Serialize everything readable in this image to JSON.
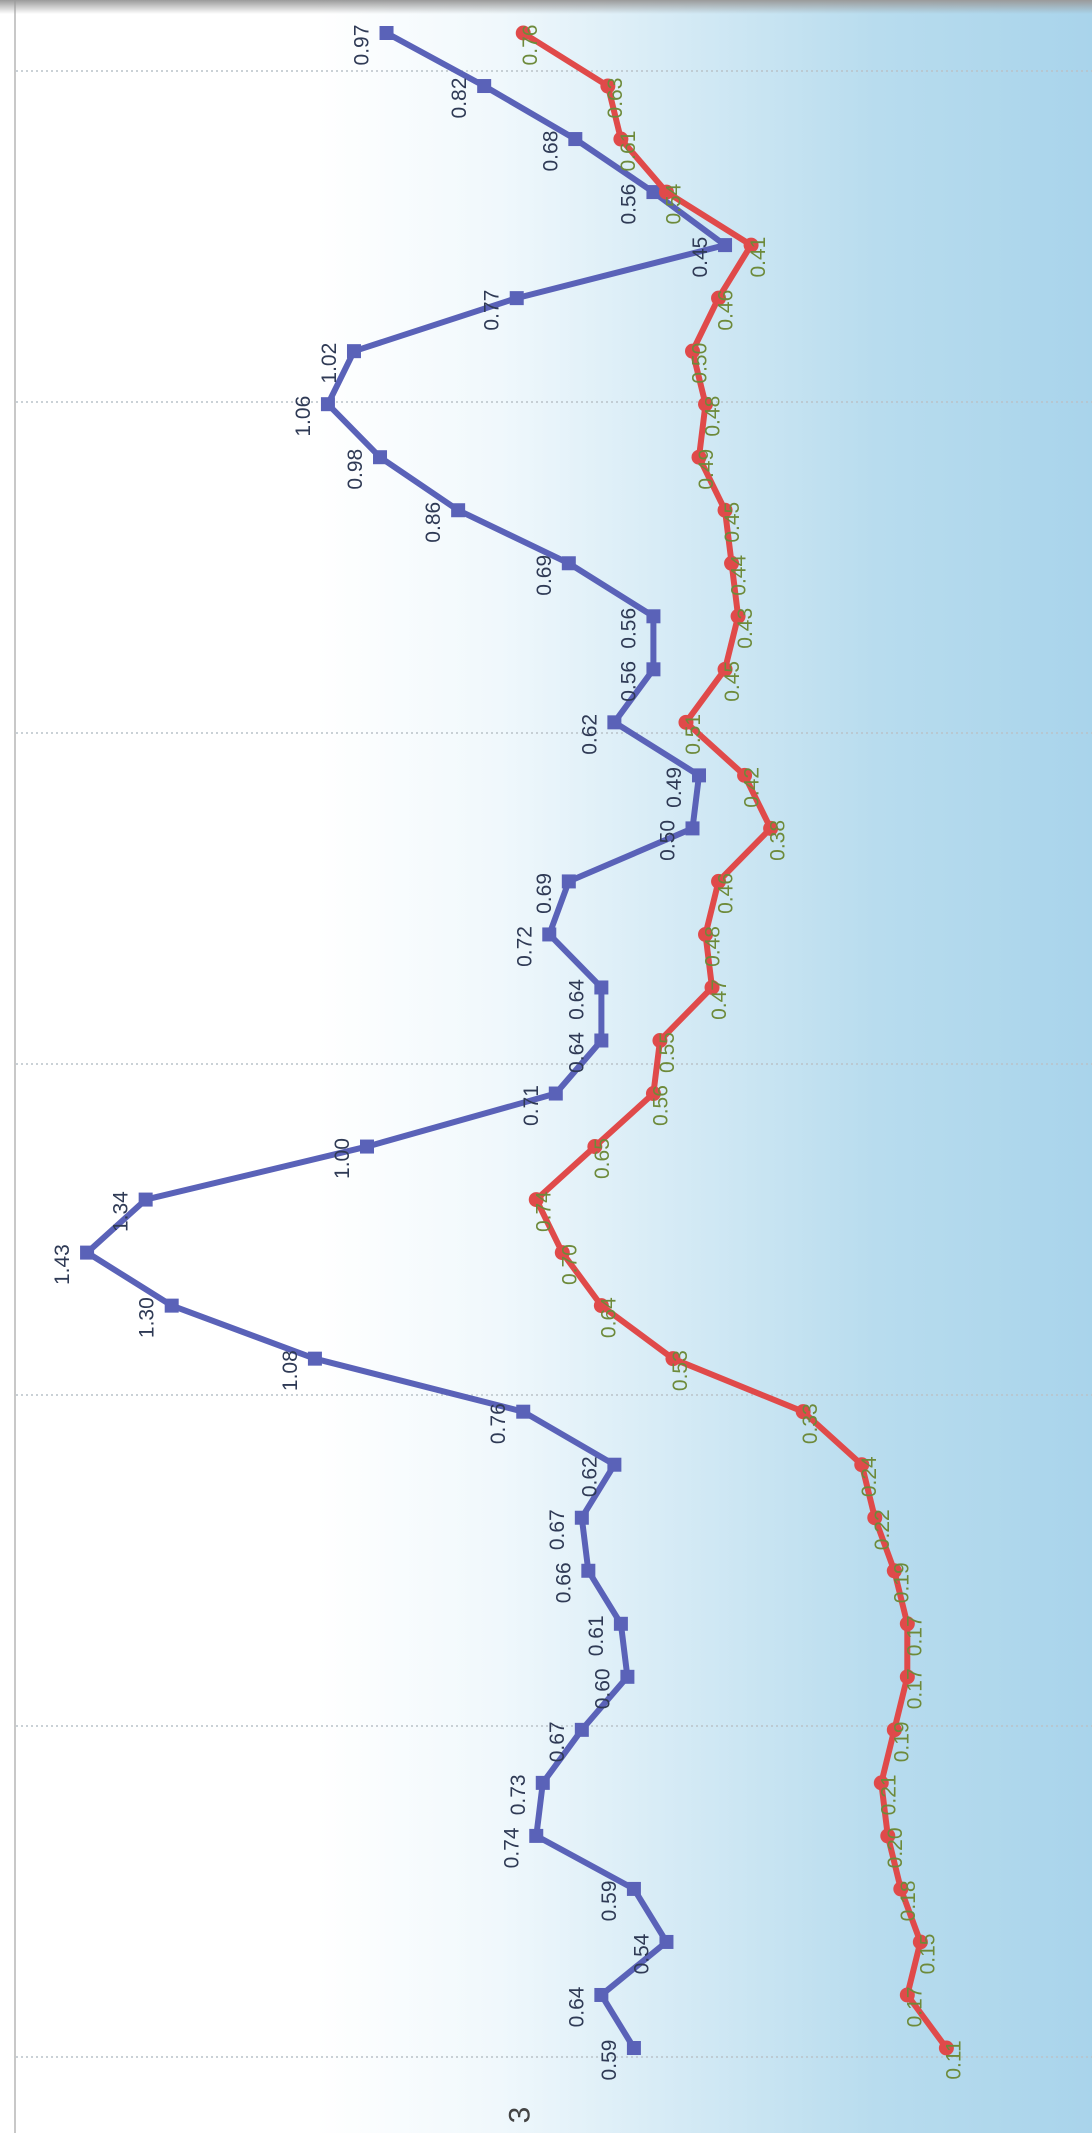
{
  "page_number": "3",
  "chart_data": {
    "type": "line",
    "orientation": "rotated-90",
    "grid": true,
    "series": [
      {
        "color": "#5a62b8",
        "marker": "square",
        "label_color": "#2f3a55",
        "values": [
          0.59,
          0.64,
          0.54,
          0.59,
          0.74,
          0.73,
          0.67,
          0.6,
          0.61,
          0.66,
          0.67,
          0.62,
          0.76,
          1.08,
          1.3,
          1.43,
          1.34,
          1.0,
          0.71,
          0.64,
          0.64,
          0.72,
          0.69,
          0.5,
          0.49,
          0.62,
          0.56,
          0.56,
          0.69,
          0.86,
          0.98,
          1.06,
          1.02,
          0.77,
          0.45,
          0.56,
          0.68,
          0.82,
          0.97
        ],
        "labels": [
          "0.59",
          "0.64",
          "0.54",
          "0.59",
          "0.74",
          "0.73",
          "0.67",
          "0.60",
          "0.61",
          "0.66",
          "0.67",
          "0.62",
          "0.76",
          "1.08",
          "1.30",
          "1.43",
          "1.34",
          "1.00",
          "0.71",
          "0.64",
          "0.64",
          "0.72",
          "0.69",
          "0.50",
          "0.49",
          "0.62",
          "0.56",
          "0.56",
          "0.69",
          "0.86",
          "0.98",
          "1.06",
          "1.02",
          "0.77",
          "0.45",
          "0.56",
          "0.68",
          "0.82",
          "0.97"
        ]
      },
      {
        "color": "#e04a4a",
        "marker": "circle",
        "label_color": "#6d8a3a",
        "values": [
          0.11,
          0.17,
          0.15,
          0.18,
          0.2,
          0.21,
          0.19,
          0.17,
          0.17,
          0.19,
          0.22,
          0.24,
          0.33,
          0.53,
          0.64,
          0.7,
          0.74,
          0.65,
          0.56,
          0.55,
          0.47,
          0.48,
          0.46,
          0.38,
          0.42,
          0.51,
          0.45,
          0.43,
          0.44,
          0.45,
          0.49,
          0.48,
          0.5,
          0.46,
          0.41,
          0.54,
          0.61,
          0.63,
          0.76
        ],
        "labels": [
          "0.11",
          "0.17",
          "0.15",
          "0.18",
          "0.20",
          "0.21",
          "0.19",
          "0.17",
          "0.17",
          "0.19",
          "0.22",
          "0.24",
          "0.33",
          "0.53",
          "0.64",
          "0.70",
          "0.74",
          "0.65",
          "0.56",
          "0.55",
          "0.47",
          "0.48",
          "0.46",
          "0.38",
          "0.42",
          "0.51",
          "0.45",
          "0.43",
          "0.44",
          "0.45",
          "0.49",
          "0.48",
          "0.50",
          "0.46",
          "0.41",
          "0.54",
          "0.61",
          "0.63",
          "0.76"
        ]
      }
    ]
  }
}
